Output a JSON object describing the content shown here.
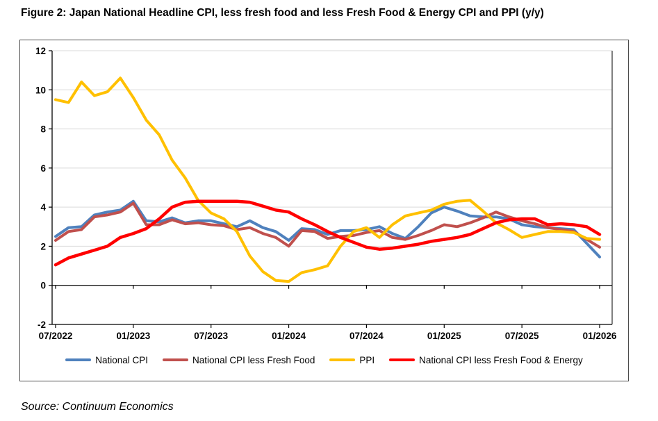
{
  "title": "Figure 2: Japan National Headline CPI, less fresh food and less Fresh Food & Energy CPI and PPI (y/y)",
  "source": "Source: Continuum Economics",
  "chart_data": {
    "type": "line",
    "title": "Figure 2: Japan National Headline CPI, less fresh food and less Fresh Food & Energy CPI and PPI (y/y)",
    "xlabel": "",
    "ylabel": "",
    "ylim": [
      -2,
      12
    ],
    "yticks": [
      12,
      10,
      8,
      6,
      4,
      2,
      0,
      -2
    ],
    "grid": true,
    "legend_position": "bottom",
    "x_tick_labels": [
      "07/2022",
      "01/2023",
      "07/2023",
      "01/2024",
      "07/2024",
      "01/2025",
      "07/2025",
      "01/2026"
    ],
    "x_tick_indices": [
      0,
      6,
      12,
      18,
      24,
      30,
      36,
      42
    ],
    "categories": [
      "07/2022",
      "08/2022",
      "09/2022",
      "10/2022",
      "11/2022",
      "12/2022",
      "01/2023",
      "02/2023",
      "03/2023",
      "04/2023",
      "05/2023",
      "06/2023",
      "07/2023",
      "08/2023",
      "09/2023",
      "10/2023",
      "11/2023",
      "12/2023",
      "01/2024",
      "02/2024",
      "03/2024",
      "04/2024",
      "05/2024",
      "06/2024",
      "07/2024",
      "08/2024",
      "09/2024",
      "10/2024",
      "11/2024",
      "12/2024",
      "01/2025",
      "02/2025",
      "03/2025",
      "04/2025",
      "05/2025",
      "06/2025",
      "07/2025",
      "08/2025",
      "09/2025",
      "10/2025",
      "11/2025",
      "12/2025",
      "01/2026"
    ],
    "series": [
      {
        "name": "National CPI",
        "color": "#4F81BD",
        "values": [
          2.5,
          2.95,
          3.0,
          3.6,
          3.75,
          3.85,
          4.3,
          3.3,
          3.25,
          3.45,
          3.2,
          3.3,
          3.3,
          3.15,
          3.0,
          3.3,
          2.95,
          2.75,
          2.3,
          2.9,
          2.85,
          2.6,
          2.8,
          2.8,
          2.85,
          3.0,
          2.65,
          2.4,
          3.0,
          3.7,
          4.0,
          3.8,
          3.55,
          3.5,
          3.5,
          3.4,
          3.1,
          3.0,
          2.95,
          2.9,
          2.85,
          2.15,
          1.45
        ]
      },
      {
        "name": "National CPI less Fresh Food",
        "color": "#C0504D",
        "values": [
          2.3,
          2.75,
          2.85,
          3.5,
          3.6,
          3.75,
          4.2,
          3.1,
          3.1,
          3.35,
          3.15,
          3.2,
          3.1,
          3.05,
          2.85,
          2.95,
          2.65,
          2.45,
          2.0,
          2.8,
          2.75,
          2.4,
          2.5,
          2.55,
          2.7,
          2.8,
          2.45,
          2.35,
          2.55,
          2.8,
          3.1,
          3.0,
          3.2,
          3.45,
          3.75,
          3.5,
          3.3,
          3.15,
          2.95,
          2.85,
          2.75,
          2.35,
          1.95
        ]
      },
      {
        "name": "PPI",
        "color": "#FFC000",
        "values": [
          9.5,
          9.35,
          10.4,
          9.7,
          9.9,
          10.6,
          9.6,
          8.45,
          7.7,
          6.4,
          5.5,
          4.35,
          3.7,
          3.4,
          2.75,
          1.5,
          0.7,
          0.25,
          0.2,
          0.65,
          0.8,
          1.0,
          2.0,
          2.75,
          2.95,
          2.45,
          3.1,
          3.55,
          3.7,
          3.85,
          4.15,
          4.3,
          4.35,
          3.8,
          3.2,
          2.85,
          2.45,
          2.6,
          2.75,
          2.75,
          2.7,
          2.4,
          2.35
        ]
      },
      {
        "name": "National CPI less Fresh Food & Energy",
        "color": "#FF0000",
        "values": [
          1.05,
          1.4,
          1.6,
          1.8,
          2.0,
          2.45,
          2.65,
          2.9,
          3.4,
          4.0,
          4.25,
          4.3,
          4.3,
          4.3,
          4.3,
          4.25,
          4.05,
          3.85,
          3.75,
          3.4,
          3.1,
          2.75,
          2.45,
          2.2,
          1.95,
          1.85,
          1.9,
          2.0,
          2.1,
          2.25,
          2.35,
          2.45,
          2.6,
          2.9,
          3.2,
          3.35,
          3.4,
          3.4,
          3.1,
          3.15,
          3.1,
          3.0,
          2.6
        ]
      }
    ],
    "colors": {
      "gridline": "#D9D9D9",
      "axis": "#000000",
      "frame": "#4a4a4a"
    }
  }
}
